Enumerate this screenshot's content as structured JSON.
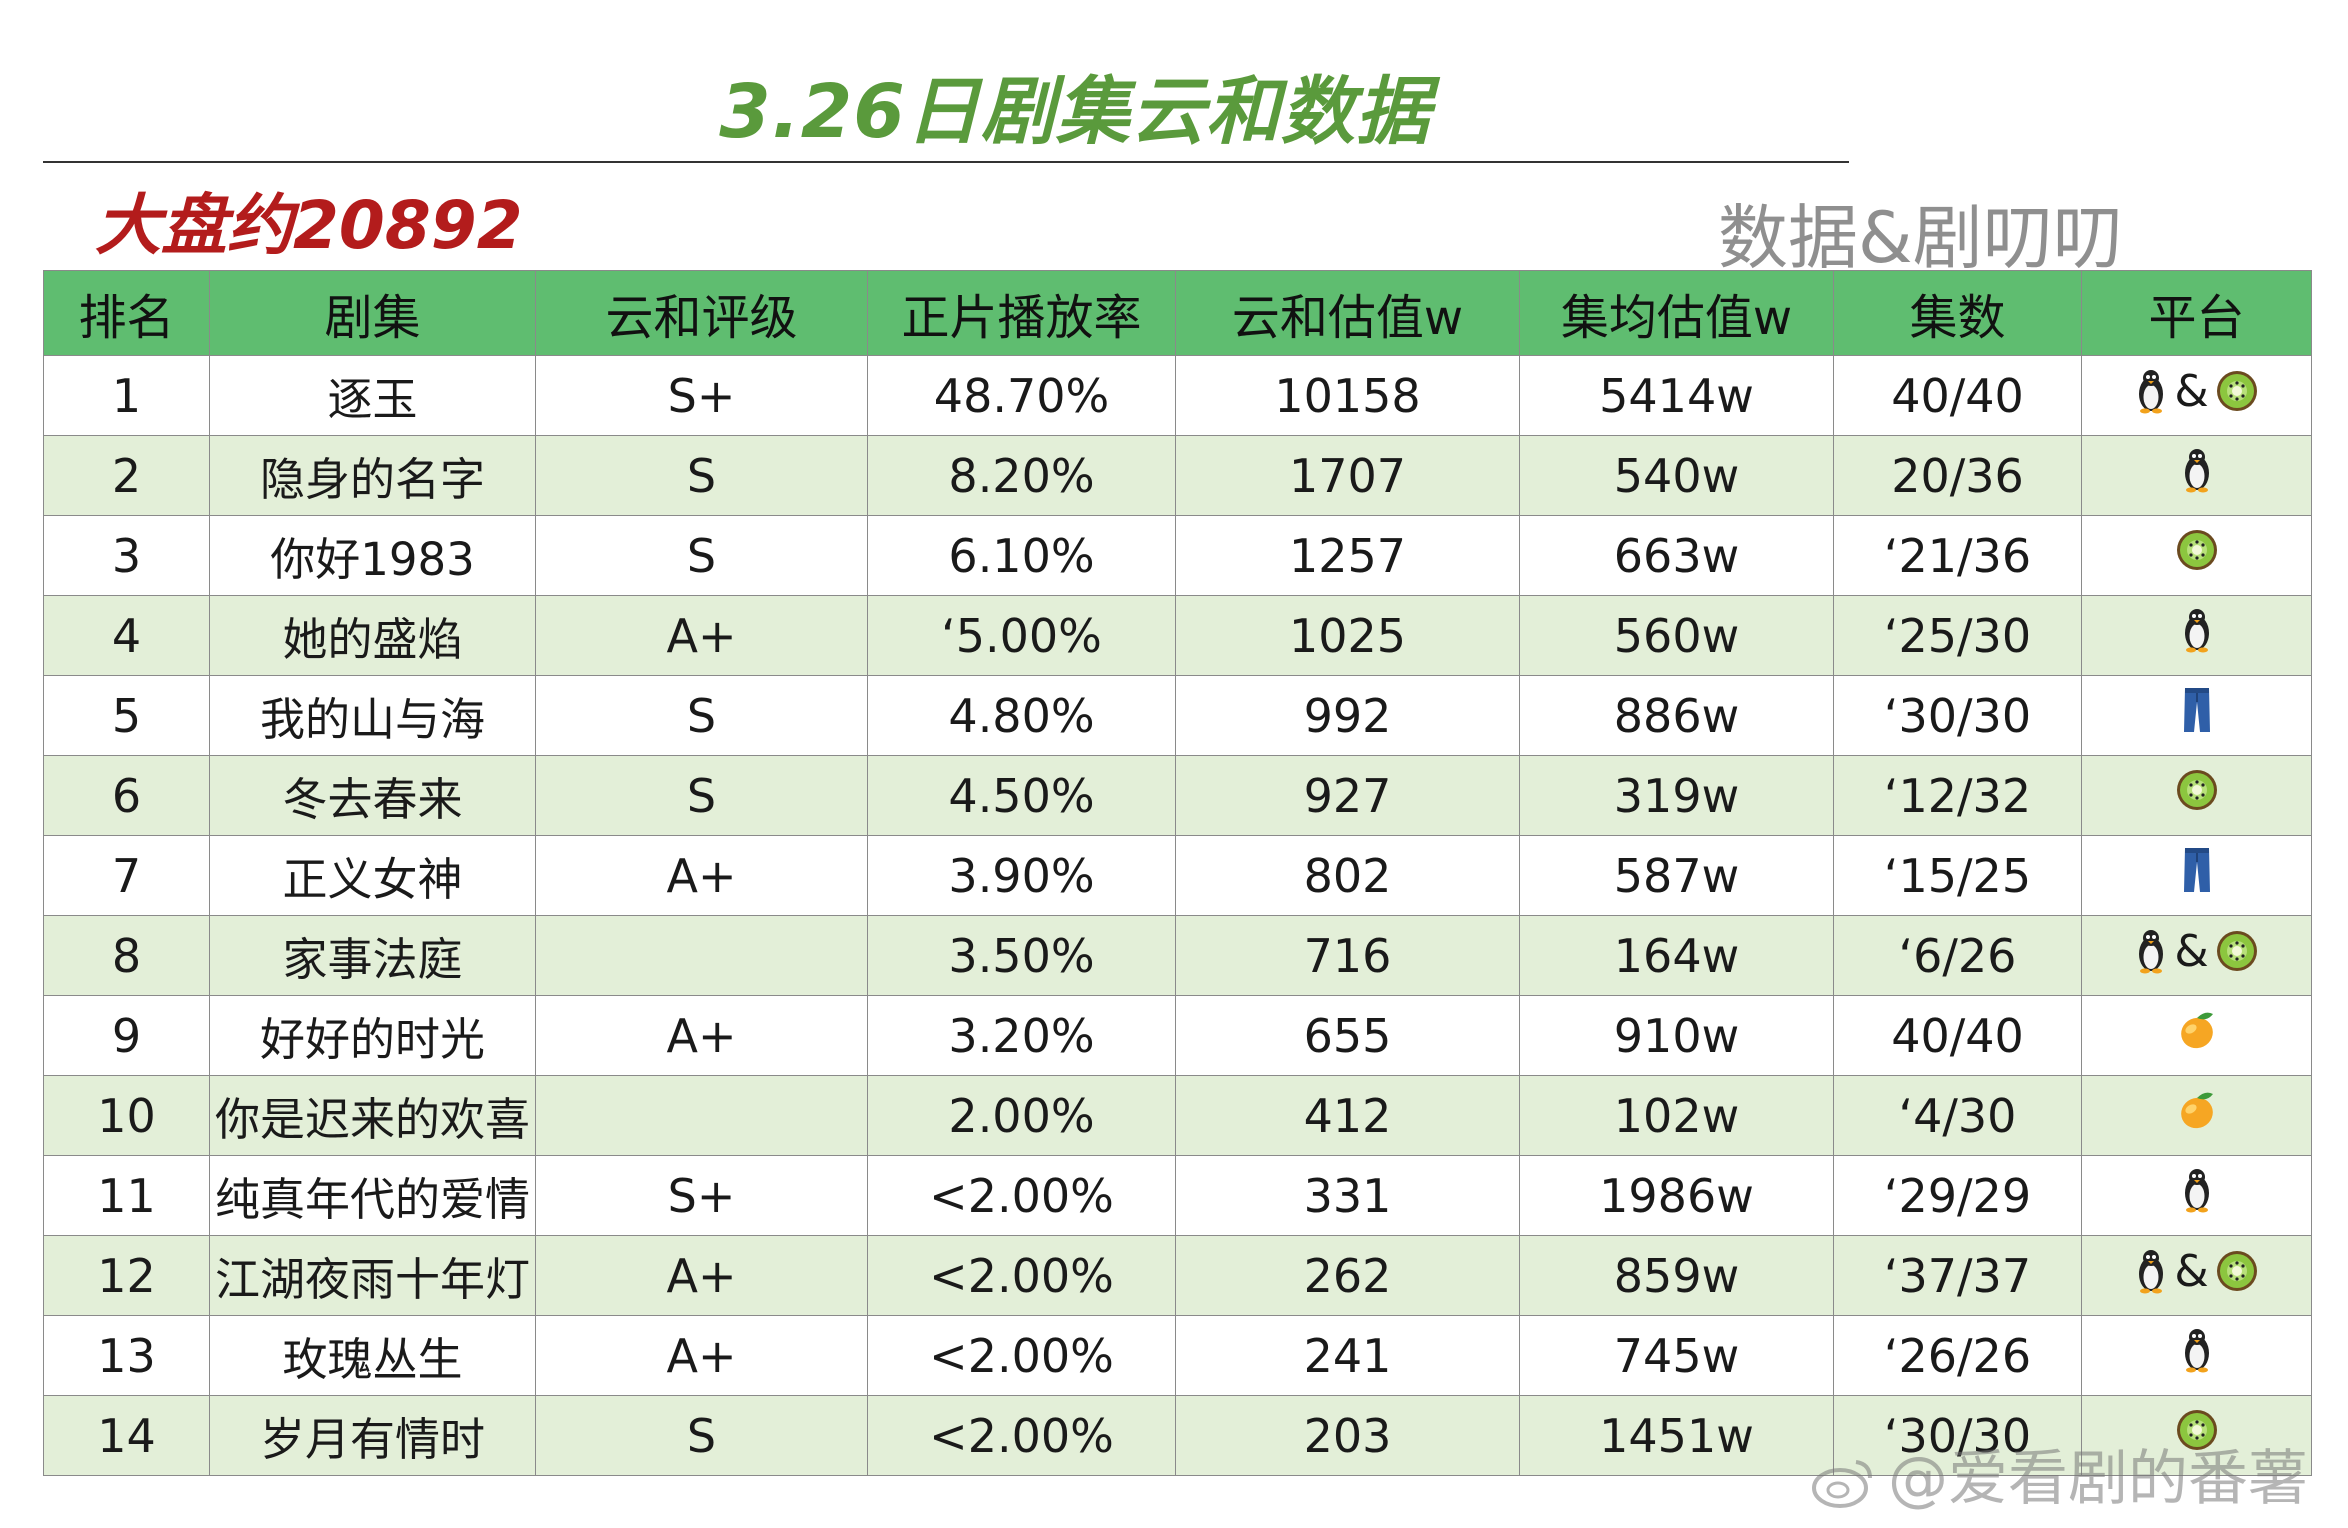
{
  "title": "3.26日剧集云和数据",
  "market_total": "大盘约20892",
  "source_tag": "数据&剧叨叨",
  "watermark": "@爱看剧的番薯",
  "icons": {
    "tencent": "penguin-icon",
    "iqiyi": "kiwi-icon",
    "youku": "jeans-icon",
    "mango": "mango-icon"
  },
  "colors": {
    "title": "#5a9a3c",
    "market": "#b31c1c",
    "header_bg": "#5fbd70",
    "row_alt_bg": "#e3efd8"
  },
  "table": {
    "headers": [
      "排名",
      "剧集",
      "云和评级",
      "正片播放率",
      "云和估值w",
      "集均估值w",
      "集数",
      "平台"
    ],
    "rows": [
      {
        "rank": "1",
        "drama": "逐玉",
        "grade": "S+",
        "rate": "48.70%",
        "value": "10158",
        "avg": "5414w",
        "episodes": "40/40",
        "platforms": [
          "tencent",
          "iqiyi"
        ]
      },
      {
        "rank": "2",
        "drama": "隐身的名字",
        "grade": "S",
        "rate": "8.20%",
        "value": "1707",
        "avg": "540w",
        "episodes": "20/36",
        "platforms": [
          "tencent"
        ]
      },
      {
        "rank": "3",
        "drama": "你好1983",
        "grade": "S",
        "rate": "6.10%",
        "value": "1257",
        "avg": "663w",
        "episodes": "‘21/36",
        "platforms": [
          "iqiyi"
        ]
      },
      {
        "rank": "4",
        "drama": "她的盛焰",
        "grade": "A+",
        "rate": "‘5.00%",
        "value": "1025",
        "avg": "560w",
        "episodes": "‘25/30",
        "platforms": [
          "tencent"
        ]
      },
      {
        "rank": "5",
        "drama": "我的山与海",
        "grade": "S",
        "rate": "4.80%",
        "value": "992",
        "avg": "886w",
        "episodes": "‘30/30",
        "platforms": [
          "youku"
        ]
      },
      {
        "rank": "6",
        "drama": "冬去春来",
        "grade": "S",
        "rate": "4.50%",
        "value": "927",
        "avg": "319w",
        "episodes": "‘12/32",
        "platforms": [
          "iqiyi"
        ]
      },
      {
        "rank": "7",
        "drama": "正义女神",
        "grade": "A+",
        "rate": "3.90%",
        "value": "802",
        "avg": "587w",
        "episodes": "‘15/25",
        "platforms": [
          "youku"
        ]
      },
      {
        "rank": "8",
        "drama": "家事法庭",
        "grade": "",
        "rate": "3.50%",
        "value": "716",
        "avg": "164w",
        "episodes": "‘6/26",
        "platforms": [
          "tencent",
          "iqiyi"
        ]
      },
      {
        "rank": "9",
        "drama": "好好的时光",
        "grade": "A+",
        "rate": "3.20%",
        "value": "655",
        "avg": "910w",
        "episodes": "40/40",
        "platforms": [
          "mango"
        ]
      },
      {
        "rank": "10",
        "drama": "你是迟来的欢喜",
        "grade": "",
        "rate": "2.00%",
        "value": "412",
        "avg": "102w",
        "episodes": "‘4/30",
        "platforms": [
          "mango"
        ]
      },
      {
        "rank": "11",
        "drama": "纯真年代的爱情",
        "grade": "S+",
        "rate": "<2.00%",
        "value": "331",
        "avg": "1986w",
        "episodes": "‘29/29",
        "platforms": [
          "tencent"
        ]
      },
      {
        "rank": "12",
        "drama": "江湖夜雨十年灯",
        "grade": "A+",
        "rate": "<2.00%",
        "value": "262",
        "avg": "859w",
        "episodes": "‘37/37",
        "platforms": [
          "tencent",
          "iqiyi"
        ]
      },
      {
        "rank": "13",
        "drama": "玫瑰丛生",
        "grade": "A+",
        "rate": "<2.00%",
        "value": "241",
        "avg": "745w",
        "episodes": "‘26/26",
        "platforms": [
          "tencent"
        ]
      },
      {
        "rank": "14",
        "drama": "岁月有情时",
        "grade": "S",
        "rate": "<2.00%",
        "value": "203",
        "avg": "1451w",
        "episodes": "‘30/30",
        "platforms": [
          "iqiyi"
        ]
      }
    ]
  }
}
